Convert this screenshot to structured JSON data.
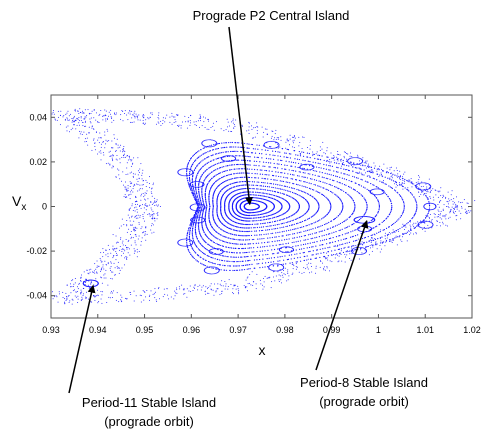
{
  "chart_data": {
    "type": "scatter",
    "title": "",
    "xlabel": "x",
    "ylabel_main": "V",
    "ylabel_sub": "x",
    "xlim": [
      0.93,
      1.02
    ],
    "ylim": [
      -0.05,
      0.05
    ],
    "x_ticks": [
      0.93,
      0.94,
      0.95,
      0.96,
      0.97,
      0.98,
      0.99,
      1,
      1.01,
      1.02
    ],
    "x_tick_labels": [
      "0.93",
      "0.94",
      "0.95",
      "0.96",
      "0.97",
      "0.98",
      "0.99",
      "1",
      "1.01",
      "1.02"
    ],
    "y_ticks": [
      0.04,
      0.02,
      0,
      -0.02,
      -0.04
    ],
    "y_tick_labels": [
      "0.04",
      "0.02",
      "0",
      "-0.02",
      "-0.04"
    ],
    "grid": false,
    "point_color": "#1a1aff",
    "central_island_center": {
      "x": 0.9725,
      "y": 0.0
    },
    "period8_island": {
      "x": 0.997,
      "y": -0.006
    },
    "period11_island": {
      "x": 0.9385,
      "y": -0.0345
    },
    "annotations": [
      {
        "lines": [
          "Prograde P2 Central Island"
        ],
        "target": {
          "x": 0.9725,
          "y": 0.001
        }
      },
      {
        "lines": [
          "Period-8 Stable Island",
          "(prograde orbit)"
        ],
        "target": {
          "x": 0.9975,
          "y": -0.0065
        }
      },
      {
        "lines": [
          "Period-11 Stable Island",
          "(prograde orbit)"
        ],
        "target": {
          "x": 0.939,
          "y": -0.0355
        }
      }
    ]
  }
}
